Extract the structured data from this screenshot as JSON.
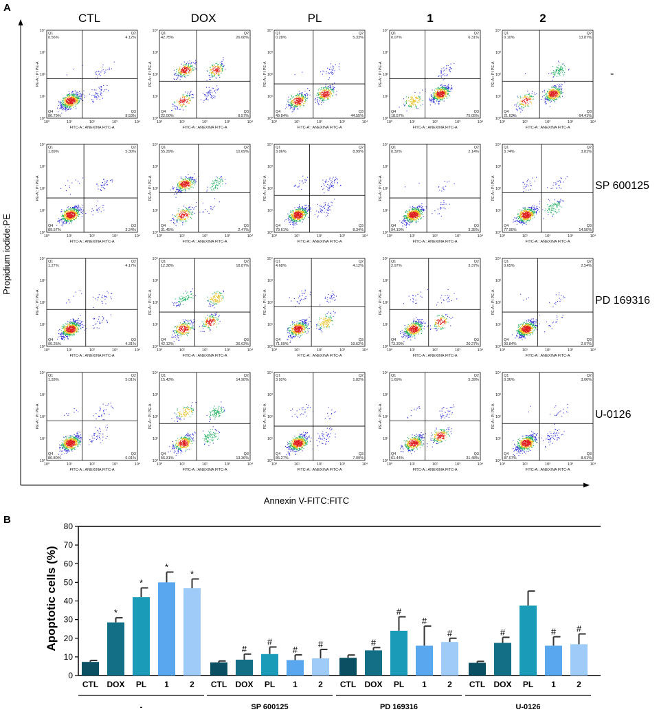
{
  "panel_a": {
    "label": "A",
    "y_axis_label": "Propidium iodide:PE",
    "x_axis_label": "Annexin V-FITC:FITC",
    "columns": [
      "CTL",
      "DOX",
      "PL",
      "1",
      "2"
    ],
    "rows": [
      "-",
      "SP 600125",
      "PD 169316",
      "U-0126"
    ],
    "plot_xlabel": "FITC-A:: ANEXINA FITC-A",
    "plot_ylabel": "PE-A:: PI PE-A",
    "decade_ticks": [
      "10⁰",
      "10¹",
      "10²",
      "10³",
      "10⁴"
    ],
    "quadrant_names": [
      "Q1",
      "Q2",
      "Q3",
      "Q4"
    ],
    "quadrants": [
      [
        [
          "0.56%",
          "4.12%",
          "8.53%",
          "86.79%"
        ],
        [
          "42.75%",
          "26.68%",
          "8.57%",
          "22.00%"
        ],
        [
          "0.28%",
          "5.33%",
          "44.55%",
          "49.84%"
        ],
        [
          "0.07%",
          "6.31%",
          "75.05%",
          "18.57%"
        ],
        [
          "0.10%",
          "13.87%",
          "64.41%",
          "21.62%"
        ]
      ],
      [
        [
          "1.89%",
          "5.30%",
          "3.24%",
          "89.57%"
        ],
        [
          "55.39%",
          "10.69%",
          "2.47%",
          "31.45%"
        ],
        [
          "3.06%",
          "8.99%",
          "8.34%",
          "79.61%"
        ],
        [
          "0.32%",
          "2.14%",
          "3.35%",
          "94.19%"
        ],
        [
          "3.74%",
          "3.81%",
          "14.50%",
          "77.95%"
        ]
      ],
      [
        [
          "1.27%",
          "4.17%",
          "4.31%",
          "90.25%"
        ],
        [
          "12.38%",
          "18.87%",
          "26.63%",
          "42.12%"
        ],
        [
          "4.68%",
          "4.12%",
          "19.62%",
          "71.59%"
        ],
        [
          "2.97%",
          "3.37%",
          "20.27%",
          "73.39%"
        ],
        [
          "0.65%",
          "2.54%",
          "2.97%",
          "93.84%"
        ]
      ],
      [
        [
          "1.28%",
          "5.01%",
          "6.91%",
          "86.80%"
        ],
        [
          "15.43%",
          "14.90%",
          "13.36%",
          "56.31%"
        ],
        [
          "3.92%",
          "1.82%",
          "7.99%",
          "86.27%"
        ],
        [
          "1.69%",
          "5.39%",
          "31.48%",
          "61.44%"
        ],
        [
          "0.36%",
          "3.06%",
          "8.91%",
          "87.67%"
        ]
      ]
    ]
  },
  "chart_data": {
    "type": "bar",
    "panel_label": "B",
    "title": "",
    "xlabel": "",
    "ylabel": "Apoptotic cells (%)",
    "ylim": [
      0,
      80
    ],
    "yticks": [
      "0",
      "10",
      "20",
      "30",
      "40",
      "50",
      "60",
      "70",
      "80"
    ],
    "categories": [
      "CTL",
      "DOX",
      "PL",
      "1",
      "2"
    ],
    "groups": [
      {
        "name": "-",
        "values": [
          7.3,
          28.5,
          42.0,
          50.0,
          46.8
        ],
        "errors": [
          0.8,
          2.5,
          5.0,
          5.5,
          5.0
        ],
        "marks": [
          "",
          "*",
          "*",
          "*",
          "*"
        ]
      },
      {
        "name": "SP 600125",
        "values": [
          7.0,
          8.5,
          11.5,
          8.3,
          9.2
        ],
        "errors": [
          0.8,
          3.0,
          3.8,
          2.8,
          4.8
        ],
        "marks": [
          "",
          "#",
          "#",
          "#",
          "#"
        ]
      },
      {
        "name": "PD 169316",
        "values": [
          9.5,
          13.5,
          24.0,
          16.0,
          18.0
        ],
        "errors": [
          1.5,
          1.5,
          7.5,
          10.5,
          2.0
        ],
        "marks": [
          "",
          "#",
          "#",
          "#",
          "#"
        ]
      },
      {
        "name": "U-0126",
        "values": [
          6.8,
          17.5,
          37.5,
          16.0,
          16.8
        ],
        "errors": [
          0.8,
          3.0,
          7.8,
          4.8,
          5.5
        ],
        "marks": [
          "",
          "#",
          "",
          "#",
          "#"
        ]
      }
    ],
    "colors": [
      "#0b4f63",
      "#136f86",
      "#1a9bb8",
      "#59a7ef",
      "#9ecbf7"
    ]
  }
}
